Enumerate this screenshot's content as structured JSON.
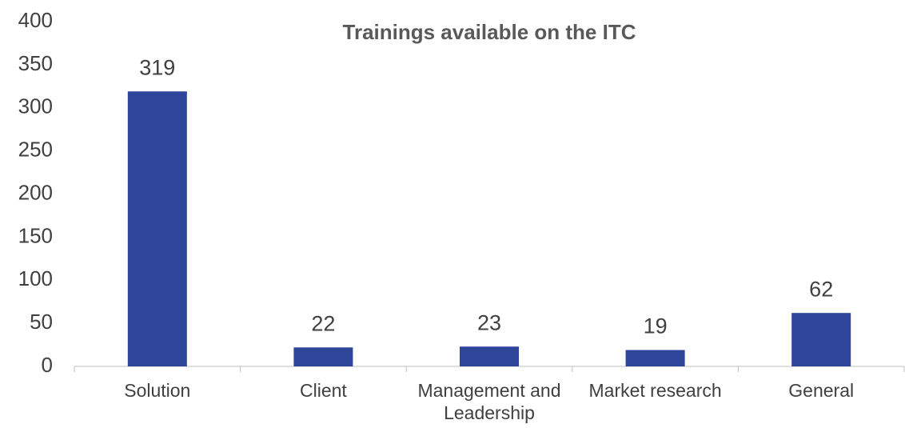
{
  "chart_data": {
    "type": "bar",
    "title": "Trainings available on the ITC",
    "categories": [
      "Solution",
      "Client",
      "Management and Leadership",
      "Market research",
      "General"
    ],
    "values": [
      319,
      22,
      23,
      19,
      62
    ],
    "color": "#2e4599",
    "ylim": [
      0,
      400
    ],
    "yticks": [
      0,
      50,
      100,
      150,
      200,
      250,
      300,
      350,
      400
    ],
    "grid": false
  }
}
